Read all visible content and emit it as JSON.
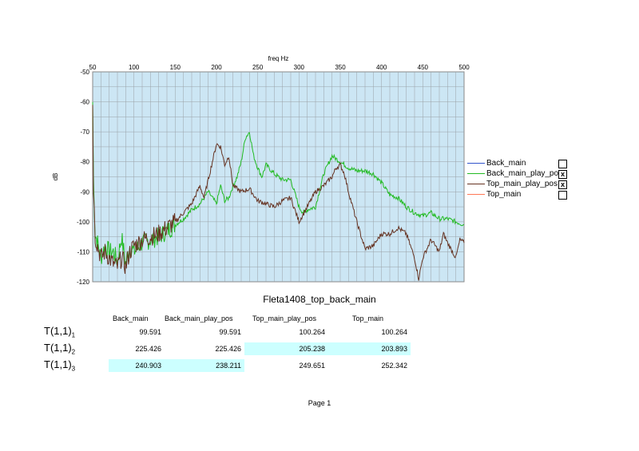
{
  "chart_data": {
    "type": "line",
    "title": "freq Hz",
    "ylabel": "dB",
    "xlim": [
      50,
      500
    ],
    "ylim": [
      -120,
      -50
    ],
    "xticks": [
      "50",
      "100",
      "150",
      "200",
      "250",
      "300",
      "350",
      "400",
      "450",
      "500"
    ],
    "yticks": [
      "-50",
      "-60",
      "-70",
      "-80",
      "-90",
      "-100",
      "-110",
      "-120"
    ],
    "grid": true,
    "legend_position": "right",
    "series": [
      {
        "name": "Back_main",
        "color": "#3355cc",
        "visible": false,
        "checked": "",
        "x": [],
        "y": []
      },
      {
        "name": "Back_main_play_pos",
        "color": "#22bb22",
        "visible": true,
        "checked": "x",
        "x": [
          50,
          51,
          53,
          56,
          60,
          65,
          70,
          75,
          80,
          85,
          90,
          95,
          100,
          110,
          120,
          130,
          140,
          150,
          160,
          170,
          180,
          190,
          195,
          200,
          205,
          210,
          215,
          220,
          225,
          230,
          235,
          240,
          245,
          250,
          255,
          260,
          270,
          280,
          290,
          300,
          305,
          310,
          320,
          330,
          340,
          350,
          360,
          370,
          380,
          390,
          400,
          410,
          420,
          430,
          440,
          450,
          460,
          470,
          480,
          490,
          500
        ],
        "y": [
          -60,
          -85,
          -104,
          -107,
          -112,
          -108,
          -110,
          -110,
          -113,
          -105,
          -114,
          -108,
          -110,
          -107,
          -106,
          -105,
          -103,
          -101,
          -99,
          -96,
          -94,
          -90,
          -92,
          -94,
          -88,
          -93,
          -92,
          -88,
          -85,
          -80,
          -72,
          -70,
          -78,
          -82,
          -85,
          -81,
          -84,
          -86,
          -86,
          -95,
          -97,
          -96,
          -95,
          -84,
          -78,
          -80,
          -82,
          -83,
          -83,
          -84,
          -87,
          -91,
          -92,
          -95,
          -97,
          -98,
          -97,
          -99,
          -99,
          -100,
          -101
        ]
      },
      {
        "name": "Top_main_play_pos",
        "color": "#663322",
        "visible": true,
        "checked": "x",
        "x": [
          50,
          51,
          53,
          56,
          60,
          65,
          70,
          75,
          80,
          85,
          90,
          95,
          100,
          110,
          120,
          130,
          140,
          150,
          160,
          170,
          180,
          185,
          190,
          195,
          200,
          205,
          210,
          215,
          220,
          230,
          240,
          250,
          260,
          270,
          280,
          290,
          300,
          310,
          320,
          330,
          340,
          345,
          350,
          355,
          360,
          370,
          380,
          390,
          395,
          400,
          410,
          420,
          430,
          440,
          445,
          450,
          460,
          470,
          475,
          480,
          490,
          495,
          500
        ],
        "y": [
          -60,
          -88,
          -105,
          -108,
          -112,
          -110,
          -112,
          -114,
          -115,
          -112,
          -115,
          -110,
          -108,
          -106,
          -105,
          -104,
          -102,
          -100,
          -97,
          -94,
          -88,
          -92,
          -86,
          -80,
          -74,
          -75,
          -81,
          -78,
          -88,
          -90,
          -89,
          -93,
          -94,
          -95,
          -93,
          -92,
          -100,
          -95,
          -90,
          -88,
          -85,
          -82,
          -81,
          -84,
          -90,
          -100,
          -109,
          -108,
          -106,
          -104,
          -104,
          -102,
          -104,
          -112,
          -119,
          -112,
          -106,
          -110,
          -104,
          -107,
          -112,
          -106,
          -107
        ]
      },
      {
        "name": "Top_main",
        "color": "#ff7755",
        "visible": false,
        "checked": "",
        "x": [],
        "y": []
      }
    ]
  },
  "subtitle": "Fleta1408_top_back_main",
  "table": {
    "headers": [
      "Back_main",
      "Back_main_play_pos",
      "Top_main_play_pos",
      "Top_main"
    ],
    "rows": [
      {
        "label": "T(1,1)",
        "sub": "1",
        "values": [
          "99.591",
          "99.591",
          "100.264",
          "100.264"
        ],
        "highlight": [
          false,
          false,
          false,
          false
        ]
      },
      {
        "label": "T(1,1)",
        "sub": "2",
        "values": [
          "225.426",
          "225.426",
          "205.238",
          "203.893"
        ],
        "highlight": [
          false,
          false,
          true,
          true
        ]
      },
      {
        "label": "T(1,1)",
        "sub": "3",
        "values": [
          "240.903",
          "238.211",
          "249.651",
          "252.342"
        ],
        "highlight": [
          true,
          true,
          false,
          false
        ]
      }
    ]
  },
  "footer": "Page 1"
}
